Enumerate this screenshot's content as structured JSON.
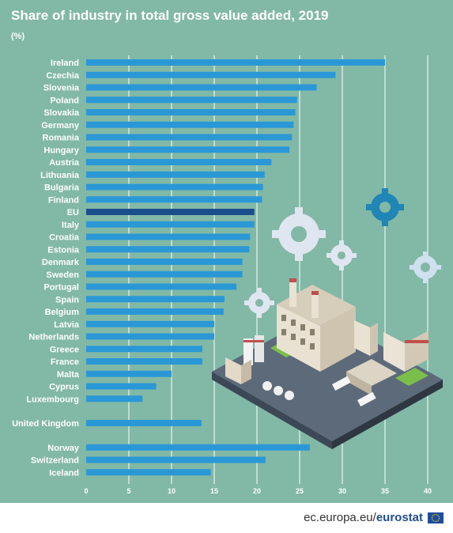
{
  "header": {
    "title": "Share of industry in total gross value added, 2019",
    "subtitle": "(%)"
  },
  "footer": {
    "site": "ec.europa.eu/",
    "brand": "eurostat"
  },
  "colors": {
    "background": "#82b8a6",
    "bar": "#2a98d6",
    "bar_highlight": "#1a4f8c",
    "gridline": "#ffffff",
    "text": "#ffffff"
  },
  "chart_data": {
    "type": "bar",
    "orientation": "horizontal",
    "title": "Share of industry in total gross value added, 2019",
    "unit": "(%)",
    "categories": [
      "Ireland",
      "Czechia",
      "Slovenia",
      "Poland",
      "Slovakia",
      "Germany",
      "Romania",
      "Hungary",
      "Austria",
      "Lithuania",
      "Bulgaria",
      "Finland",
      "EU",
      "Italy",
      "Croatia",
      "Estonia",
      "Denmark",
      "Sweden",
      "Portugal",
      "Spain",
      "Belgium",
      "Latvia",
      "Netherlands",
      "Greece",
      "France",
      "Malta",
      "Cyprus",
      "Luxembourg",
      "United Kingdom",
      "Norway",
      "Switzerland",
      "Iceland"
    ],
    "values": [
      35.0,
      29.2,
      27.0,
      24.7,
      24.5,
      24.3,
      24.1,
      23.8,
      21.7,
      20.9,
      20.7,
      20.6,
      19.7,
      19.7,
      19.2,
      19.1,
      18.3,
      18.3,
      17.6,
      16.2,
      16.1,
      15.0,
      15.0,
      13.6,
      13.6,
      10.0,
      8.2,
      6.6,
      13.5,
      26.2,
      21.0,
      14.6
    ],
    "highlight": "EU",
    "xlim": [
      0,
      40
    ],
    "xticks": [
      0,
      5,
      10,
      15,
      20,
      25,
      30,
      35,
      40
    ],
    "grid": true,
    "legend": "none"
  }
}
